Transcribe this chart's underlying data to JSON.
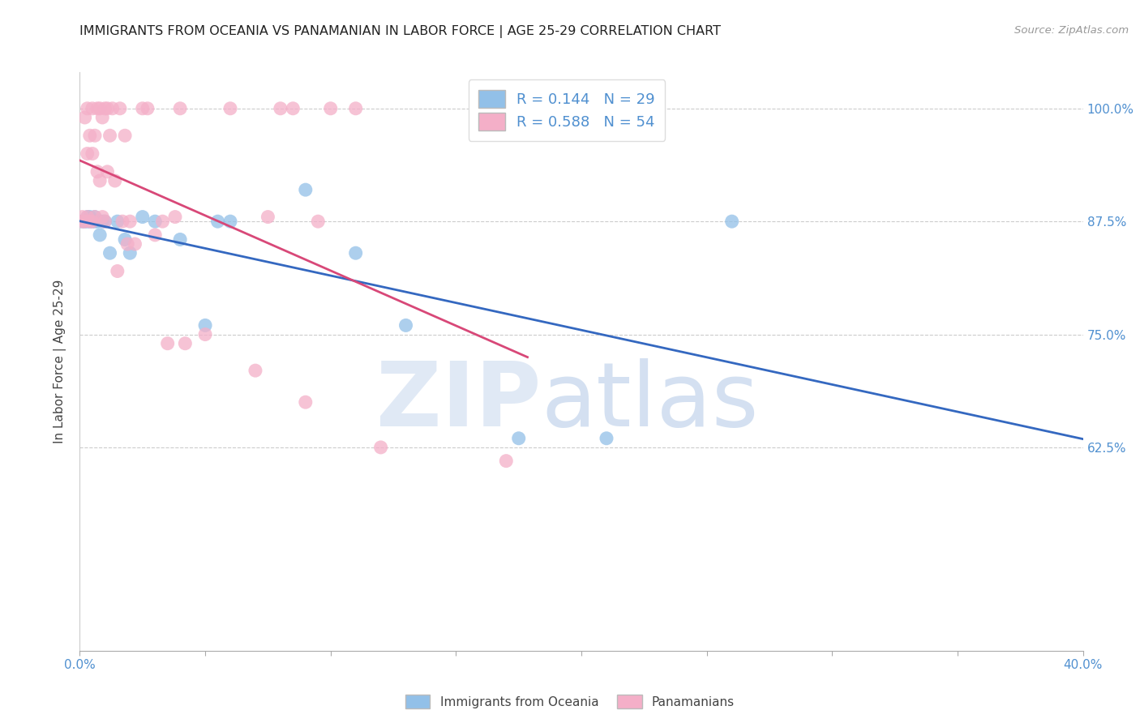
{
  "title": "IMMIGRANTS FROM OCEANIA VS PANAMANIAN IN LABOR FORCE | AGE 25-29 CORRELATION CHART",
  "source": "Source: ZipAtlas.com",
  "ylabel": "In Labor Force | Age 25-29",
  "y_ticks": [
    0.625,
    0.75,
    0.875,
    1.0
  ],
  "y_tick_labels": [
    "62.5%",
    "75.0%",
    "87.5%",
    "100.0%"
  ],
  "x_lim": [
    0.0,
    0.4
  ],
  "y_lim": [
    0.4,
    1.04
  ],
  "blue_R": 0.144,
  "blue_N": 29,
  "pink_R": 0.588,
  "pink_N": 54,
  "blue_color": "#92c0e8",
  "pink_color": "#f4afc8",
  "blue_line_color": "#3468c0",
  "pink_line_color": "#d84878",
  "blue_scatter_x": [
    0.001,
    0.002,
    0.003,
    0.003,
    0.004,
    0.004,
    0.005,
    0.006,
    0.006,
    0.007,
    0.008,
    0.009,
    0.01,
    0.012,
    0.015,
    0.018,
    0.02,
    0.025,
    0.03,
    0.04,
    0.05,
    0.055,
    0.06,
    0.09,
    0.11,
    0.13,
    0.175,
    0.21,
    0.26
  ],
  "blue_scatter_y": [
    0.875,
    0.875,
    0.875,
    0.88,
    0.875,
    0.88,
    0.875,
    0.875,
    0.88,
    0.875,
    0.86,
    0.875,
    0.875,
    0.84,
    0.875,
    0.855,
    0.84,
    0.88,
    0.875,
    0.855,
    0.76,
    0.875,
    0.875,
    0.91,
    0.84,
    0.76,
    0.635,
    0.635,
    0.875
  ],
  "pink_scatter_x": [
    0.001,
    0.001,
    0.002,
    0.002,
    0.003,
    0.003,
    0.003,
    0.004,
    0.004,
    0.005,
    0.005,
    0.005,
    0.006,
    0.006,
    0.007,
    0.007,
    0.008,
    0.008,
    0.009,
    0.009,
    0.01,
    0.01,
    0.011,
    0.011,
    0.012,
    0.013,
    0.014,
    0.015,
    0.016,
    0.017,
    0.018,
    0.019,
    0.02,
    0.022,
    0.025,
    0.027,
    0.03,
    0.033,
    0.035,
    0.038,
    0.04,
    0.042,
    0.05,
    0.06,
    0.07,
    0.075,
    0.08,
    0.085,
    0.09,
    0.095,
    0.1,
    0.11,
    0.12,
    0.17
  ],
  "pink_scatter_y": [
    0.875,
    0.88,
    0.875,
    0.99,
    0.88,
    0.95,
    1.0,
    0.875,
    0.97,
    1.0,
    0.875,
    0.95,
    0.97,
    0.88,
    1.0,
    0.93,
    1.0,
    0.92,
    0.99,
    0.88,
    1.0,
    0.875,
    1.0,
    0.93,
    0.97,
    1.0,
    0.92,
    0.82,
    1.0,
    0.875,
    0.97,
    0.85,
    0.875,
    0.85,
    1.0,
    1.0,
    0.86,
    0.875,
    0.74,
    0.88,
    1.0,
    0.74,
    0.75,
    1.0,
    0.71,
    0.88,
    1.0,
    1.0,
    0.675,
    0.875,
    1.0,
    1.0,
    0.625,
    0.61
  ],
  "x_tick_positions": [
    0.0,
    0.05,
    0.1,
    0.15,
    0.2,
    0.25,
    0.3,
    0.35,
    0.4
  ],
  "watermark_zip": "ZIP",
  "watermark_atlas": "atlas"
}
